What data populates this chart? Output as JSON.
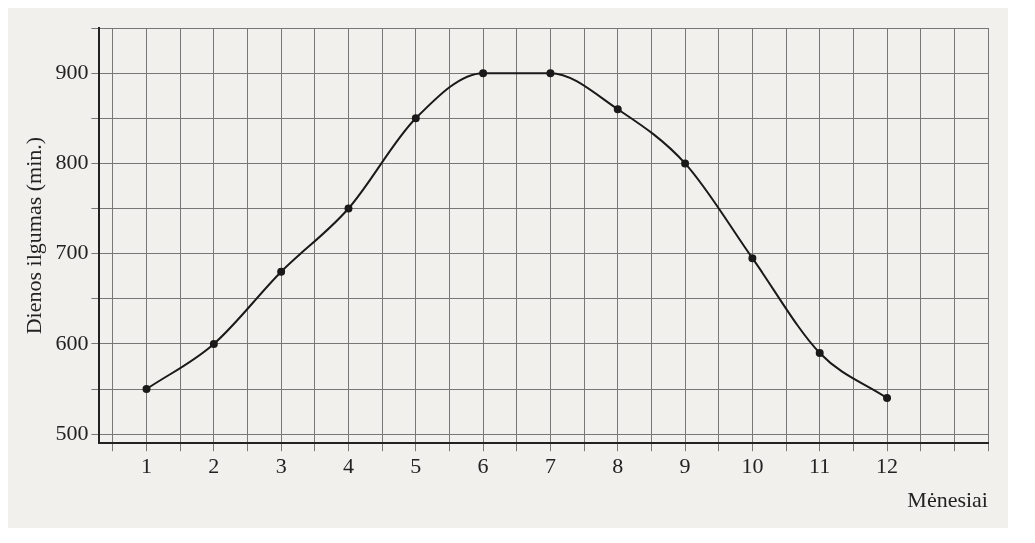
{
  "chart_data": {
    "type": "line",
    "xlabel": "Mėnesiai",
    "ylabel": "Dienos ilgumas (min.)",
    "x": [
      1,
      2,
      3,
      4,
      5,
      6,
      7,
      8,
      9,
      10,
      11,
      12
    ],
    "series": [
      {
        "color": "#1a1a1a",
        "values": [
          550,
          600,
          680,
          750,
          850,
          900,
          900,
          860,
          800,
          695,
          590,
          540
        ]
      }
    ],
    "xlim": [
      0.3,
      13.5
    ],
    "xticks": [
      {
        "value": 0.5,
        "label": null
      },
      1,
      {
        "value": 1.5,
        "label": null
      },
      2,
      {
        "value": 2.5,
        "label": null
      },
      3,
      {
        "value": 3.5,
        "label": null
      },
      4,
      {
        "value": 4.5,
        "label": null
      },
      5,
      {
        "value": 5.5,
        "label": null
      },
      6,
      {
        "value": 6.5,
        "label": null
      },
      7,
      {
        "value": 7.5,
        "label": null
      },
      8,
      {
        "value": 8.5,
        "label": null
      },
      9,
      {
        "value": 9.5,
        "label": null
      },
      10,
      {
        "value": 10.5,
        "label": null
      },
      11,
      {
        "value": 11.5,
        "label": null
      },
      12,
      {
        "value": 12.5,
        "label": null
      },
      {
        "value": 13,
        "label": null
      },
      {
        "value": 13.5,
        "label": null
      }
    ],
    "ylim": [
      490,
      950
    ],
    "yticks": [
      500,
      {
        "value": 550,
        "label": null
      },
      600,
      {
        "value": 650,
        "label": null
      },
      700,
      {
        "value": 750,
        "label": null
      },
      800,
      {
        "value": 850,
        "label": null
      },
      900,
      {
        "value": 950,
        "label": null
      }
    ],
    "grid": true,
    "legend": false,
    "marker": "circle",
    "line_style": "solid"
  }
}
